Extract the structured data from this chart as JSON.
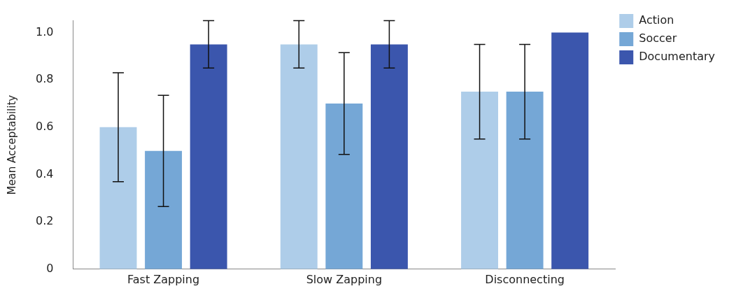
{
  "chart_data": {
    "type": "bar",
    "ylabel": "Mean Acceptability",
    "categories": [
      "Fast Zapping",
      "Slow Zapping",
      "Disconnecting"
    ],
    "series": [
      {
        "name": "Action",
        "color": "#aecde9",
        "values": [
          0.6,
          0.95,
          0.75
        ],
        "errors": [
          0.23,
          0.1,
          0.2
        ]
      },
      {
        "name": "Soccer",
        "color": "#75a7d6",
        "values": [
          0.5,
          0.7,
          0.75
        ],
        "errors": [
          0.235,
          0.215,
          0.2
        ]
      },
      {
        "name": "Documentary",
        "color": "#3b56ad",
        "values": [
          0.95,
          0.95,
          1.0
        ],
        "errors": [
          0.1,
          0.1,
          null
        ]
      }
    ],
    "ylim": [
      0,
      1.05
    ],
    "yticks": [
      0,
      {
        "value": 0.2,
        "label": "0.2"
      },
      {
        "value": 0.4,
        "label": "0.4"
      },
      {
        "value": 0.6,
        "label": "0.6"
      },
      {
        "value": 0.8,
        "label": "0.8"
      },
      {
        "value": 1,
        "label": "1.0"
      }
    ],
    "grid": false,
    "legend": "right"
  }
}
